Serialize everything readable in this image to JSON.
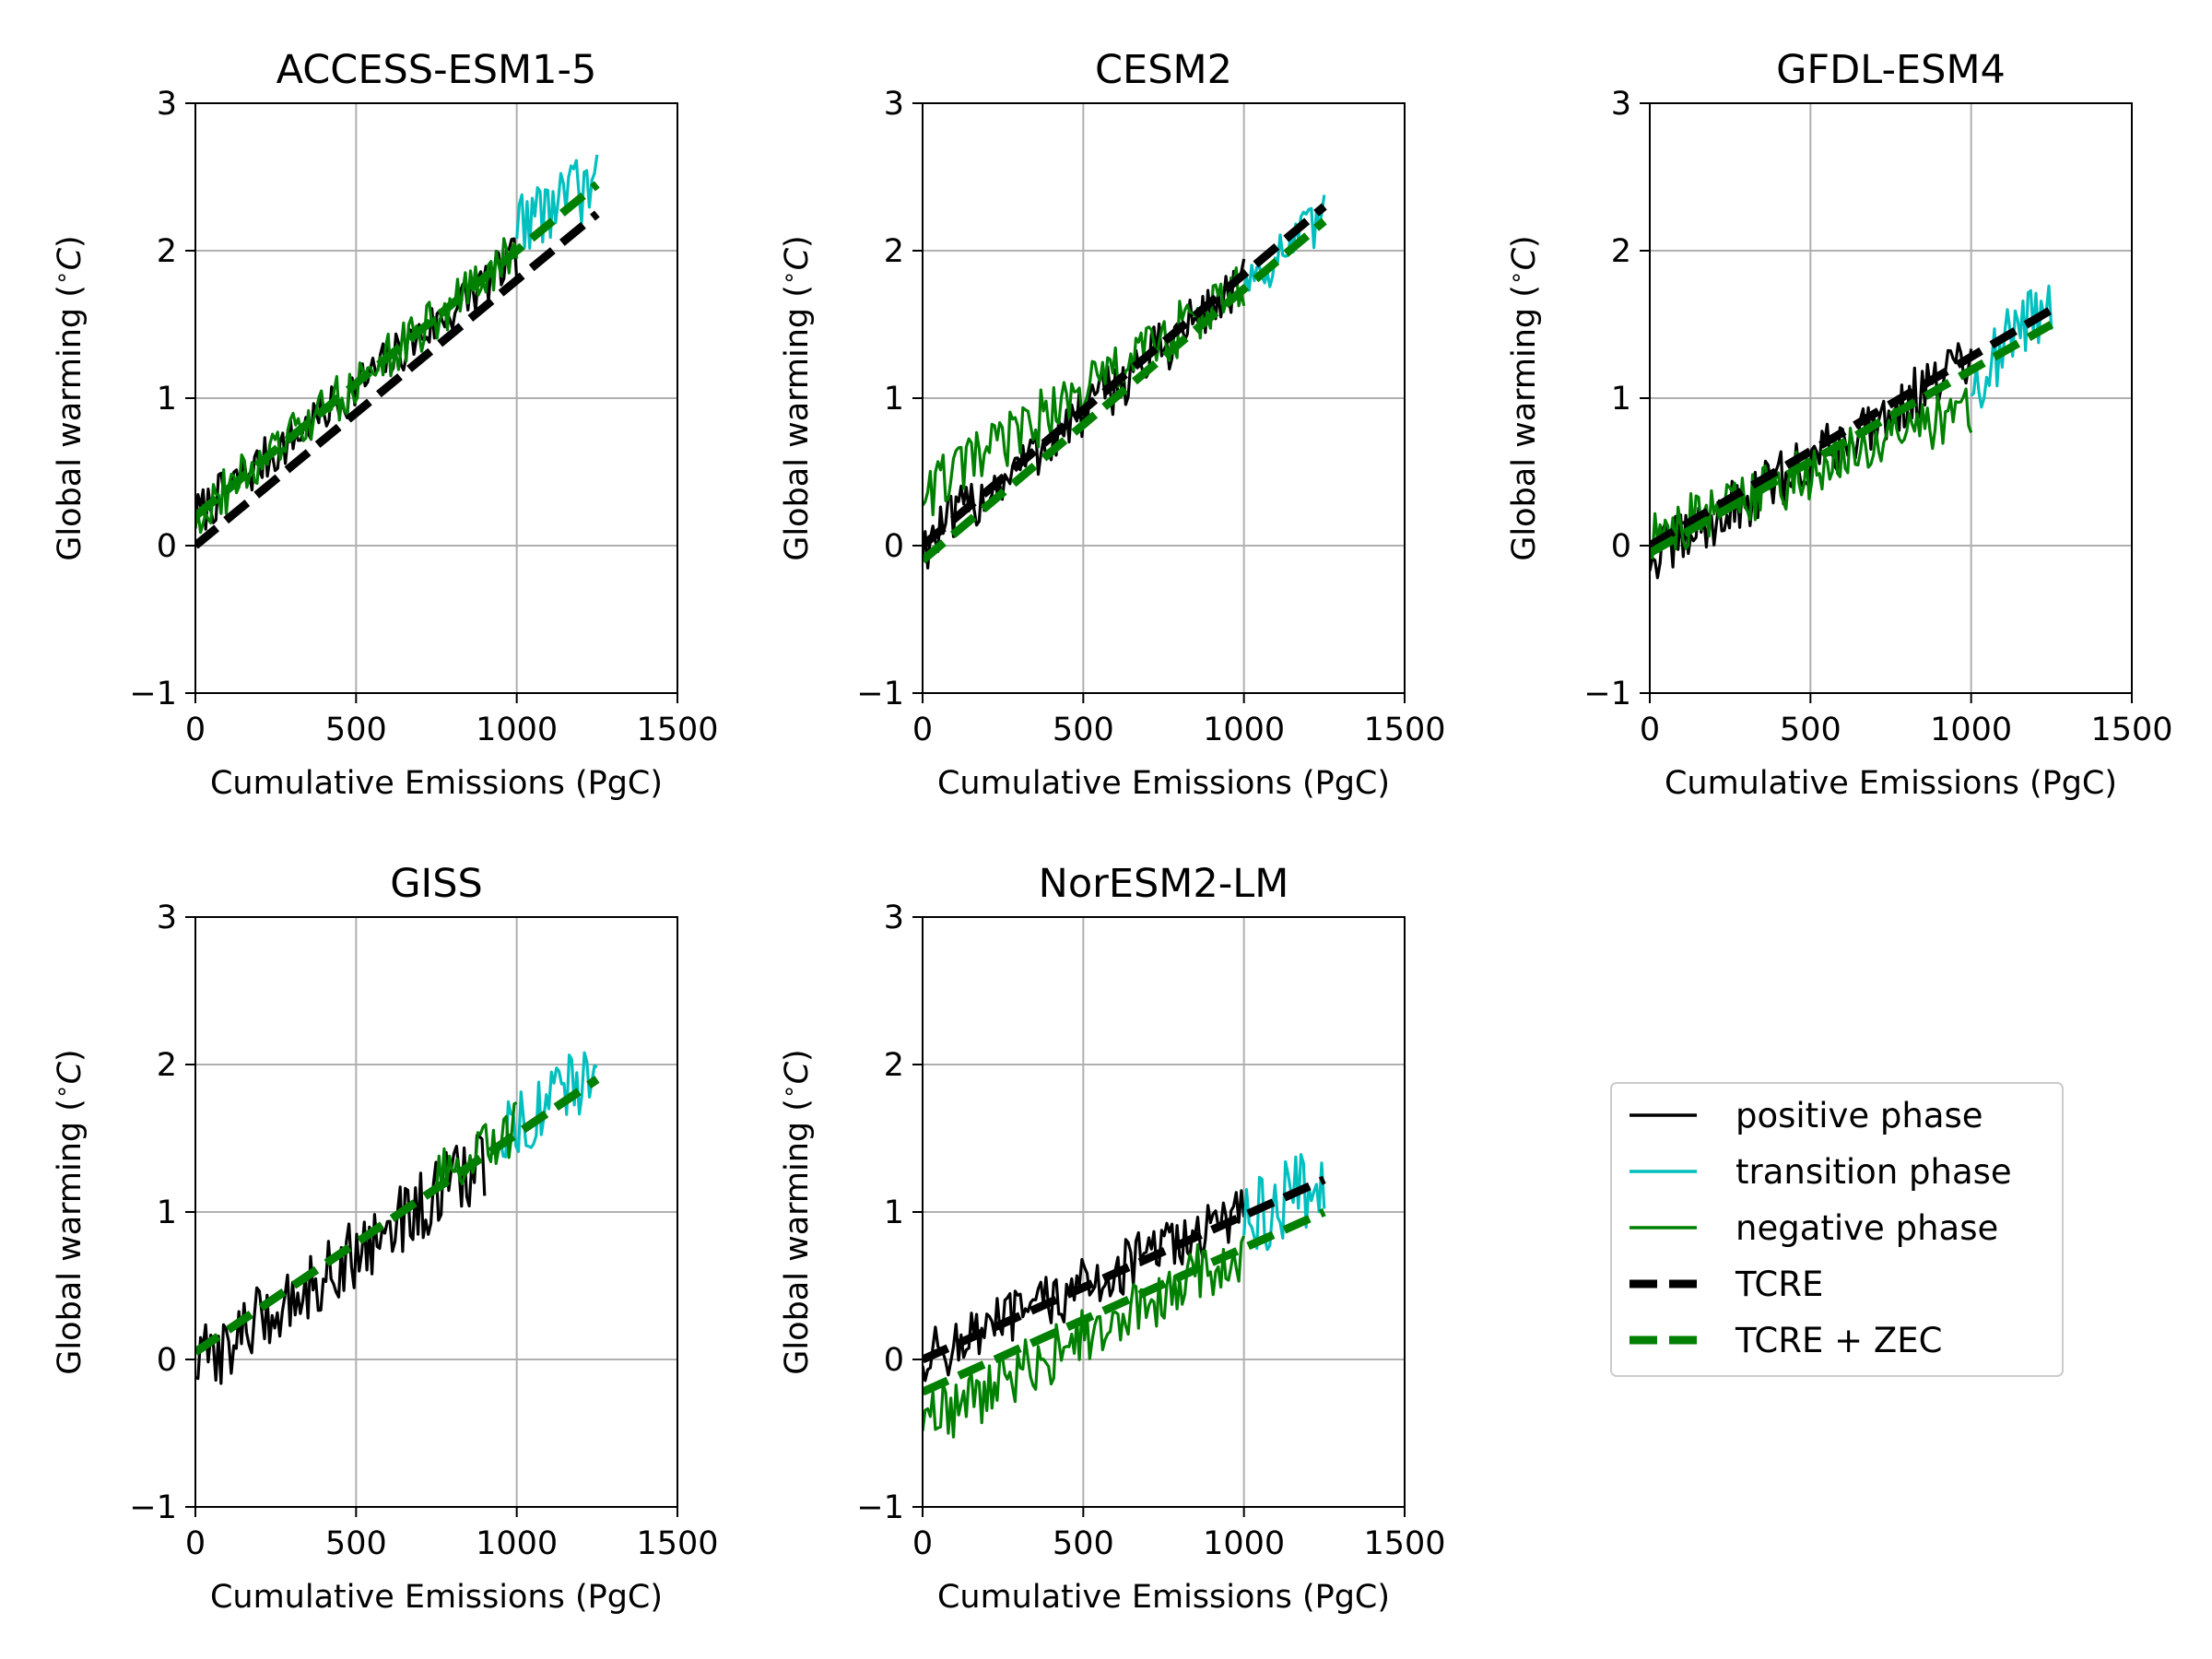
{
  "colors": {
    "positive": "#000000",
    "transition": "#00bfbf",
    "negative": "#008000",
    "grid": "#b0b0b0"
  },
  "legend": {
    "placement": "right of lower row",
    "items": [
      {
        "label": "positive phase",
        "color": "#000000",
        "style": "solid"
      },
      {
        "label": "transition phase",
        "color": "#00bfbf",
        "style": "solid"
      },
      {
        "label": "negative phase",
        "color": "#008000",
        "style": "solid"
      },
      {
        "label": "TCRE",
        "color": "#000000",
        "style": "dashed"
      },
      {
        "label": "TCRE + ZEC",
        "color": "#008000",
        "style": "dashed"
      }
    ]
  },
  "chart_data": [
    {
      "type": "line",
      "title": "ACCESS-ESM1-5",
      "xlabel": "Cumulative Emissions (PgC)",
      "ylabel": "Global warming ($^{\\circ}C$)",
      "xlim": [
        0,
        1500
      ],
      "ylim": [
        -1,
        3
      ],
      "xticks": [
        0,
        500,
        1000,
        1500
      ],
      "yticks": [
        -1,
        0,
        1,
        2,
        3
      ],
      "grid": true,
      "series": [
        {
          "name": "positive phase",
          "x": [
            0,
            1000
          ],
          "y": [
            0.2,
            1.95
          ],
          "noise": 0.1
        },
        {
          "name": "transition phase",
          "x": [
            1000,
            1250
          ],
          "y": [
            2.2,
            2.45
          ],
          "noise": 0.15
        },
        {
          "name": "negative phase",
          "x": [
            0,
            1000
          ],
          "y": [
            0.2,
            2.0
          ],
          "noise": 0.1
        },
        {
          "name": "TCRE",
          "x": [
            0,
            1250
          ],
          "y": [
            0.0,
            2.25
          ]
        },
        {
          "name": "TCRE + ZEC",
          "x": [
            0,
            1250
          ],
          "y": [
            0.2,
            2.45
          ]
        }
      ]
    },
    {
      "type": "line",
      "title": "CESM2",
      "xlabel": "Cumulative Emissions (PgC)",
      "ylabel": "Global warming ($^{\\circ}C$)",
      "xlim": [
        0,
        1500
      ],
      "ylim": [
        -1,
        3
      ],
      "xticks": [
        0,
        500,
        1000,
        1500
      ],
      "yticks": [
        -1,
        0,
        1,
        2,
        3
      ],
      "grid": true,
      "series": [
        {
          "name": "positive phase",
          "x": [
            0,
            1000
          ],
          "y": [
            0.0,
            1.8
          ],
          "noise": 0.12
        },
        {
          "name": "transition phase",
          "x": [
            1000,
            1250
          ],
          "y": [
            1.8,
            2.2
          ],
          "noise": 0.12
        },
        {
          "name": "negative phase",
          "x": [
            0,
            1000
          ],
          "y": [
            0.35,
            1.75
          ],
          "noise": 0.12
        },
        {
          "name": "TCRE",
          "x": [
            0,
            1250
          ],
          "y": [
            0.0,
            2.3
          ]
        },
        {
          "name": "TCRE + ZEC",
          "x": [
            0,
            1250
          ],
          "y": [
            -0.1,
            2.2
          ]
        }
      ]
    },
    {
      "type": "line",
      "title": "GFDL-ESM4",
      "xlabel": "Cumulative Emissions (PgC)",
      "ylabel": "Global warming ($^{\\circ}C$)",
      "xlim": [
        0,
        1500
      ],
      "ylim": [
        -1,
        3
      ],
      "xticks": [
        0,
        500,
        1000,
        1500
      ],
      "yticks": [
        -1,
        0,
        1,
        2,
        3
      ],
      "grid": true,
      "series": [
        {
          "name": "positive phase",
          "x": [
            0,
            1000
          ],
          "y": [
            -0.1,
            1.25
          ],
          "noise": 0.12
        },
        {
          "name": "transition phase",
          "x": [
            1000,
            1250
          ],
          "y": [
            1.1,
            1.7
          ],
          "noise": 0.15
        },
        {
          "name": "negative phase",
          "x": [
            0,
            1000
          ],
          "y": [
            0.05,
            0.95
          ],
          "noise": 0.12
        },
        {
          "name": "TCRE",
          "x": [
            0,
            1250
          ],
          "y": [
            0.0,
            1.6
          ]
        },
        {
          "name": "TCRE + ZEC",
          "x": [
            0,
            1250
          ],
          "y": [
            -0.05,
            1.5
          ]
        }
      ]
    },
    {
      "type": "line",
      "title": "GISS",
      "xlabel": "Cumulative Emissions (PgC)",
      "ylabel": "Global warming ($^{\\circ}C$)",
      "xlim": [
        0,
        1500
      ],
      "ylim": [
        -1,
        3
      ],
      "xticks": [
        0,
        500,
        1000,
        1500
      ],
      "yticks": [
        -1,
        0,
        1,
        2,
        3
      ],
      "grid": true,
      "series": [
        {
          "name": "positive phase",
          "x": [
            0,
            900
          ],
          "y": [
            -0.05,
            1.35
          ],
          "noise": 0.15
        },
        {
          "name": "transition phase",
          "x": [
            950,
            1250
          ],
          "y": [
            1.55,
            1.95
          ],
          "noise": 0.15
        },
        {
          "name": "negative phase",
          "x": [
            750,
            1000
          ],
          "y": [
            1.2,
            1.6
          ],
          "noise": 0.12
        },
        {
          "name": "TCRE",
          "x": [
            0,
            1250
          ],
          "y": [
            0.05,
            1.9
          ]
        },
        {
          "name": "TCRE + ZEC",
          "x": [
            0,
            1250
          ],
          "y": [
            0.05,
            1.9
          ]
        }
      ]
    },
    {
      "type": "line",
      "title": "NorESM2-LM",
      "xlabel": "Cumulative Emissions (PgC)",
      "ylabel": "Global warming ($^{\\circ}C$)",
      "xlim": [
        0,
        1500
      ],
      "ylim": [
        -1,
        3
      ],
      "xticks": [
        0,
        500,
        1000,
        1500
      ],
      "yticks": [
        -1,
        0,
        1,
        2,
        3
      ],
      "grid": true,
      "series": [
        {
          "name": "positive phase",
          "x": [
            0,
            1000
          ],
          "y": [
            0.0,
            1.0
          ],
          "noise": 0.12
        },
        {
          "name": "transition phase",
          "x": [
            1000,
            1250
          ],
          "y": [
            0.9,
            1.25
          ],
          "noise": 0.18
        },
        {
          "name": "negative phase",
          "x": [
            0,
            1000
          ],
          "y": [
            -0.45,
            0.75
          ],
          "noise": 0.13
        },
        {
          "name": "TCRE",
          "x": [
            0,
            1250
          ],
          "y": [
            0.0,
            1.22
          ]
        },
        {
          "name": "TCRE + ZEC",
          "x": [
            0,
            1250
          ],
          "y": [
            -0.22,
            1.0
          ]
        }
      ]
    }
  ]
}
